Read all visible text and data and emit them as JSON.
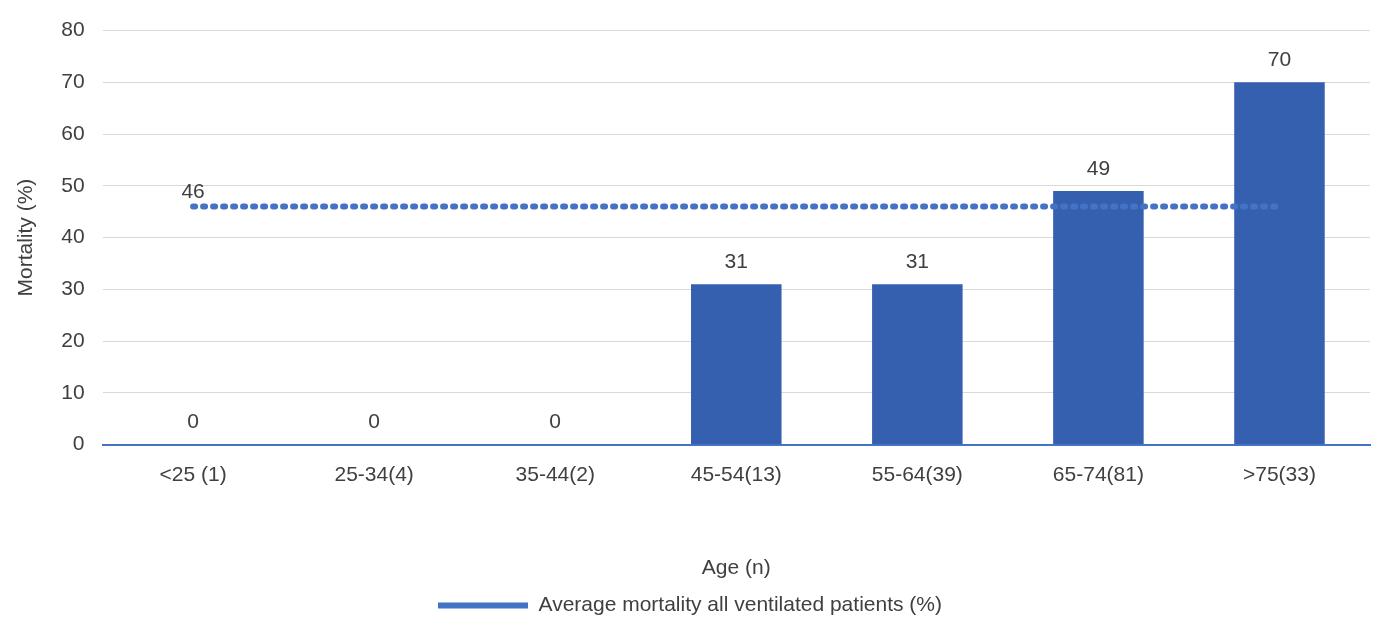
{
  "chart_data": {
    "type": "bar",
    "ylabel": "Mortality (%)",
    "xlabel": "Age (n)",
    "categories": [
      "<25 (1)",
      "25-34(4)",
      "35-44(2)",
      "45-54(13)",
      "55-64(39)",
      "65-74(81)",
      ">75(33)"
    ],
    "series": [
      {
        "color": "#3560b0",
        "values": [
          0,
          0,
          0,
          31,
          31,
          49,
          70
        ],
        "value_labels": [
          "0",
          "0",
          "0",
          "31",
          "31",
          "49",
          "70"
        ]
      },
      {
        "type": "line",
        "name": "Average mortality all ventilated patients (%)",
        "color": "#4472c4",
        "line_style": "dotted",
        "marker": "none",
        "values": [
          46,
          46,
          46,
          46,
          46,
          46,
          46
        ],
        "value_labels": [
          "46",
          null,
          null,
          null,
          null,
          null,
          null
        ]
      }
    ],
    "ylim": [
      0,
      80
    ],
    "yticks": [
      0,
      10,
      20,
      30,
      40,
      50,
      60,
      70,
      80
    ],
    "grid": "y",
    "legend": "bottom"
  }
}
